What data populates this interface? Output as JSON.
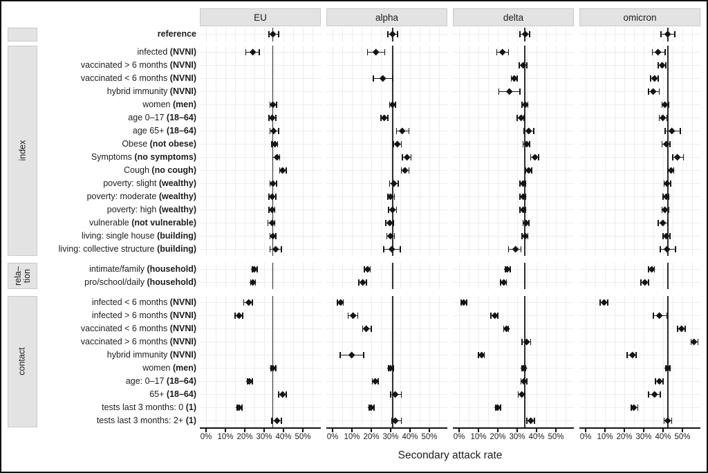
{
  "chart_data": {
    "type": "scatter",
    "subtype": "forest-plot-with-error-bars",
    "title": "",
    "xlabel": "Secondary attack rate",
    "x_tick_labels": [
      "0%",
      "10%",
      "20%",
      "30%",
      "40%",
      "50%"
    ],
    "x_tick_values": [
      0,
      10,
      20,
      30,
      40,
      50
    ],
    "xlim": [
      0,
      59
    ],
    "grid": "light gray, vertical every 5%, horizontal per row",
    "legend_position": "none",
    "marker": "black diamond with horizontal CI whiskers and end caps",
    "value_format": "percent: [estimate, ci_low, ci_high]; null = not shown in panel",
    "panels": [
      {
        "name": "EU",
        "reference_line": 34.5
      },
      {
        "name": "alpha",
        "reference_line": 31
      },
      {
        "name": "delta",
        "reference_line": 34
      },
      {
        "name": "omicron",
        "reference_line": 42.5
      }
    ],
    "groups": [
      {
        "label": "",
        "rows": [
          {
            "label": "reference",
            "paren": null,
            "bold_label": true,
            "values": {
              "EU": [
                34.5,
                32.5,
                37.5
              ],
              "alpha": [
                31,
                28.5,
                33.5
              ],
              "delta": [
                34,
                31.5,
                36.5
              ],
              "omicron": [
                42.5,
                39,
                46
              ]
            }
          }
        ]
      },
      {
        "label": "index",
        "rows": [
          {
            "label": "infected",
            "paren": "NVNI",
            "values": {
              "EU": [
                24,
                20.5,
                27.5
              ],
              "alpha": [
                22.5,
                18,
                27
              ],
              "delta": [
                22.5,
                19.5,
                25.5
              ],
              "omicron": [
                37.5,
                34.5,
                41
              ]
            }
          },
          {
            "label": "vaccinated > 6 months",
            "paren": "NVNI",
            "values": {
              "EU": null,
              "alpha": null,
              "delta": [
                33,
                31,
                35
              ],
              "omicron": [
                39.5,
                37.5,
                41.5
              ]
            }
          },
          {
            "label": "vaccinated < 6 months",
            "paren": "NVNI",
            "values": {
              "EU": null,
              "alpha": [
                26,
                21,
                31
              ],
              "delta": [
                28.5,
                27,
                30
              ],
              "omicron": [
                35.5,
                33.5,
                37.5
              ]
            }
          },
          {
            "label": "hybrid immunity",
            "paren": "NVNI",
            "values": {
              "EU": null,
              "alpha": null,
              "delta": [
                26,
                20.5,
                31.5
              ],
              "omicron": [
                35,
                32.5,
                38
              ]
            }
          },
          {
            "label": "women",
            "paren": "men",
            "values": {
              "EU": [
                34.5,
                33,
                36.5
              ],
              "alpha": [
                31,
                29.5,
                32.5
              ],
              "delta": [
                34,
                32.5,
                35.5
              ],
              "omicron": [
                41,
                39.5,
                43
              ]
            }
          },
          {
            "label": "age 0–17",
            "paren": "18–64",
            "values": {
              "EU": [
                34,
                32.5,
                36
              ],
              "alpha": [
                26.5,
                25,
                28.5
              ],
              "delta": [
                32,
                30,
                33.5
              ],
              "omicron": [
                40,
                38,
                42
              ]
            }
          },
          {
            "label": "age 65+",
            "paren": "18–64",
            "values": {
              "EU": [
                35,
                33,
                37.5
              ],
              "alpha": [
                36,
                33,
                39.5
              ],
              "delta": [
                36,
                33.5,
                38.5
              ],
              "omicron": [
                44.5,
                41,
                49
              ]
            }
          },
          {
            "label": "Obese",
            "paren": "not obese",
            "values": {
              "EU": [
                35.5,
                34,
                37
              ],
              "alpha": [
                33.5,
                31.5,
                35.5
              ],
              "delta": [
                35,
                33,
                36.5
              ],
              "omicron": [
                41.5,
                39.5,
                43.5
              ]
            }
          },
          {
            "label": "Symptoms",
            "paren": "no symptoms",
            "values": {
              "EU": [
                36.5,
                34.5,
                38
              ],
              "alpha": [
                38.5,
                36,
                40.5
              ],
              "delta": [
                39,
                37,
                41
              ],
              "omicron": [
                47.5,
                45,
                50.5
              ]
            }
          },
          {
            "label": "Cough",
            "paren": "no cough",
            "values": {
              "EU": [
                39.5,
                38,
                41.5
              ],
              "alpha": [
                37.5,
                35.5,
                39.5
              ],
              "delta": [
                36,
                34.5,
                37.5
              ],
              "omicron": [
                44,
                42.5,
                45.5
              ]
            }
          },
          {
            "label": "poverty: slight",
            "paren": "wealthy",
            "values": {
              "EU": [
                34.5,
                33,
                36.5
              ],
              "alpha": [
                31.5,
                29.5,
                34
              ],
              "delta": [
                33,
                31.5,
                34.5
              ],
              "omicron": [
                42,
                40.5,
                44
              ]
            }
          },
          {
            "label": "poverty: moderate",
            "paren": "wealthy",
            "values": {
              "EU": [
                34,
                32.5,
                36
              ],
              "alpha": [
                30,
                28.5,
                32
              ],
              "delta": [
                33,
                31.5,
                34.5
              ],
              "omicron": [
                41.5,
                40,
                43
              ]
            }
          },
          {
            "label": "poverty: high",
            "paren": "wealthy",
            "values": {
              "EU": [
                34,
                32.5,
                35.5
              ],
              "alpha": [
                31,
                29,
                33
              ],
              "delta": [
                33,
                31.5,
                34.5
              ],
              "omicron": [
                41,
                39.5,
                43
              ]
            }
          },
          {
            "label": "vulnerable",
            "paren": "not vulnerable",
            "values": {
              "EU": [
                34,
                32,
                35.5
              ],
              "alpha": [
                29.5,
                27.5,
                31.5
              ],
              "delta": [
                34.5,
                33,
                36
              ],
              "omicron": [
                40,
                37.5,
                42.5
              ]
            }
          },
          {
            "label": "living: single house",
            "paren": "building",
            "values": {
              "EU": [
                34.5,
                33,
                36
              ],
              "alpha": [
                30,
                28,
                32
              ],
              "delta": [
                34,
                32.5,
                35.5
              ],
              "omicron": [
                41.5,
                40,
                43.5
              ]
            }
          },
          {
            "label": "living: collective structure",
            "paren": "building",
            "values": {
              "EU": [
                36,
                33,
                39
              ],
              "alpha": [
                30.5,
                26.5,
                35
              ],
              "delta": [
                29,
                25.5,
                32
              ],
              "omicron": [
                42,
                38.5,
                46.5
              ]
            }
          }
        ]
      },
      {
        "label": "rela–\ntion",
        "rows": [
          {
            "label": "intimate/family",
            "paren": "household",
            "values": {
              "EU": [
                25,
                24,
                26.5
              ],
              "alpha": [
                18,
                16.5,
                19.5
              ],
              "delta": [
                25,
                24,
                26.5
              ],
              "omicron": [
                34,
                32.5,
                35.5
              ]
            }
          },
          {
            "label": "pro/school/daily",
            "paren": "household",
            "values": {
              "EU": [
                24,
                23,
                25.5
              ],
              "alpha": [
                15.5,
                13.5,
                17.5
              ],
              "delta": [
                23,
                21.5,
                24.5
              ],
              "omicron": [
                30.5,
                28.5,
                32.5
              ]
            }
          }
        ]
      },
      {
        "label": "contact",
        "rows": [
          {
            "label": "infected < 6 months",
            "paren": "NVNI",
            "values": {
              "EU": [
                22,
                19.5,
                24
              ],
              "alpha": [
                4,
                2.5,
                5.5
              ],
              "delta": [
                2.5,
                1,
                4
              ],
              "omicron": [
                9.5,
                7.5,
                11.5
              ]
            }
          },
          {
            "label": "infected > 6 months",
            "paren": "NVNI",
            "values": {
              "EU": [
                17,
                15,
                19
              ],
              "alpha": [
                10.5,
                8,
                13
              ],
              "delta": [
                18.5,
                16.5,
                20
              ],
              "omicron": [
                38,
                35,
                42
              ]
            }
          },
          {
            "label": "vaccinated < 6 months",
            "paren": "NVNI",
            "values": {
              "EU": null,
              "alpha": [
                17.5,
                15.5,
                20
              ],
              "delta": [
                24.5,
                23,
                25.5
              ],
              "omicron": [
                49.5,
                47.5,
                51.5
              ]
            }
          },
          {
            "label": "vaccinated > 6 months",
            "paren": "NVNI",
            "values": {
              "EU": null,
              "alpha": null,
              "delta": [
                35,
                32.5,
                37
              ],
              "omicron": [
                56,
                54.5,
                58
              ]
            }
          },
          {
            "label": "hybrid immunity",
            "paren": "NVNI",
            "values": {
              "EU": null,
              "alpha": [
                10,
                4,
                16
              ],
              "delta": [
                11.5,
                10,
                13
              ],
              "omicron": [
                24,
                21.5,
                26
              ]
            }
          },
          {
            "label": "women",
            "paren": "men",
            "values": {
              "EU": [
                34.5,
                33.5,
                36
              ],
              "alpha": [
                30,
                29,
                31.5
              ],
              "delta": [
                33.5,
                32.5,
                34.5
              ],
              "omicron": [
                42.5,
                41.5,
                43.5
              ]
            }
          },
          {
            "label": "age: 0–17",
            "paren": "18–64",
            "values": {
              "EU": [
                22.5,
                21.5,
                24
              ],
              "alpha": [
                22,
                20.5,
                23.5
              ],
              "delta": [
                33.5,
                32,
                35
              ],
              "omicron": [
                38,
                36,
                40
              ]
            }
          },
          {
            "label": "65+",
            "paren": "18–64",
            "values": {
              "EU": [
                39.5,
                37.5,
                41.5
              ],
              "alpha": [
                32.5,
                30,
                35.5
              ],
              "delta": [
                32.5,
                30.5,
                34
              ],
              "omicron": [
                35.5,
                32.5,
                38.5
              ]
            }
          },
          {
            "label": "tests last 3 months: 0",
            "paren": "1",
            "values": {
              "EU": [
                17,
                16,
                18.5
              ],
              "alpha": [
                20,
                19,
                21.5
              ],
              "delta": [
                20,
                19,
                21.5
              ],
              "omicron": [
                25,
                23.5,
                27
              ]
            }
          },
          {
            "label": "tests last 3 months: 2+",
            "paren": "1",
            "values": {
              "EU": [
                36.5,
                34,
                39
              ],
              "alpha": [
                32.5,
                30.5,
                35.5
              ],
              "delta": [
                37,
                35,
                39
              ],
              "omicron": [
                42.5,
                40.5,
                44.5
              ]
            }
          }
        ]
      }
    ]
  }
}
